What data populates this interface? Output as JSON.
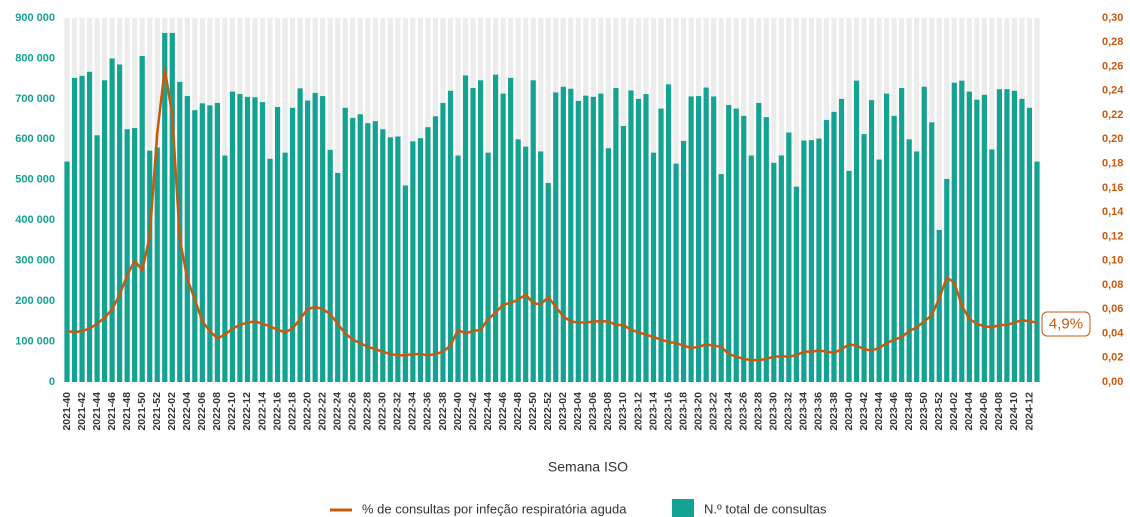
{
  "chart_data": {
    "type": "bar_line",
    "x_label": "Semana ISO",
    "end_label": "4,9%",
    "categories": [
      "2021-40",
      null,
      "2021-42",
      null,
      "2021-44",
      null,
      "2021-46",
      null,
      "2021-48",
      null,
      "2021-50",
      null,
      "2021-52",
      null,
      "2022-02",
      null,
      "2022-04",
      null,
      "2022-06",
      null,
      "2022-08",
      null,
      "2022-10",
      null,
      "2022-12",
      null,
      "2022-14",
      null,
      "2022-16",
      null,
      "2022-18",
      null,
      "2022-20",
      null,
      "2022-22",
      null,
      "2022-24",
      null,
      "2022-26",
      null,
      "2022-28",
      null,
      "2022-30",
      null,
      "2022-32",
      null,
      "2022-34",
      null,
      "2022-36",
      null,
      "2022-38",
      null,
      "2022-40",
      null,
      "2022-42",
      null,
      "2022-44",
      null,
      "2022-46",
      null,
      "2022-48",
      null,
      "2022-50",
      null,
      "2022-52",
      null,
      "2023-02",
      null,
      "2023-04",
      null,
      "2023-06",
      null,
      "2023-08",
      null,
      "2023-10",
      null,
      "2023-12",
      null,
      "2023-14",
      null,
      "2023-16",
      null,
      "2023-18",
      null,
      "2023-20",
      null,
      "2023-22",
      null,
      "2023-24",
      null,
      "2023-26",
      null,
      "2023-28",
      null,
      "2023-30",
      null,
      "2023-32",
      null,
      "2023-34",
      null,
      "2023-36",
      null,
      "2023-38",
      null,
      "2023-40",
      null,
      "2023-42",
      null,
      "2023-44",
      null,
      "2023-46",
      null,
      "2023-48",
      null,
      "2023-50",
      null,
      "2023-52",
      null,
      "2024-02",
      null,
      "2024-04",
      null,
      "2024-06",
      null,
      "2024-08",
      null,
      "2024-10",
      null,
      "2024-12",
      null
    ],
    "series": [
      {
        "name": "% de consultas por infeção respiratória aguda",
        "color": "#c55a11",
        "kind": "line",
        "axis": "y2",
        "values": [
          0.042,
          0.041,
          0.042,
          0.044,
          0.048,
          0.053,
          0.06,
          0.072,
          0.088,
          0.1,
          0.092,
          0.12,
          0.205,
          0.258,
          0.22,
          0.118,
          0.085,
          0.068,
          0.05,
          0.042,
          0.036,
          0.039,
          0.044,
          0.047,
          0.049,
          0.05,
          0.048,
          0.046,
          0.043,
          0.041,
          0.044,
          0.052,
          0.06,
          0.062,
          0.06,
          0.056,
          0.048,
          0.04,
          0.035,
          0.032,
          0.029,
          0.027,
          0.025,
          0.023,
          0.022,
          0.022,
          0.023,
          0.023,
          0.022,
          0.023,
          0.025,
          0.03,
          0.043,
          0.04,
          0.042,
          0.043,
          0.052,
          0.057,
          0.064,
          0.065,
          0.068,
          0.072,
          0.065,
          0.064,
          0.07,
          0.062,
          0.054,
          0.05,
          0.049,
          0.049,
          0.05,
          0.05,
          0.05,
          0.047,
          0.047,
          0.043,
          0.041,
          0.039,
          0.037,
          0.035,
          0.033,
          0.032,
          0.03,
          0.028,
          0.029,
          0.031,
          0.03,
          0.029,
          0.023,
          0.021,
          0.019,
          0.018,
          0.018,
          0.019,
          0.021,
          0.021,
          0.021,
          0.022,
          0.025,
          0.025,
          0.026,
          0.025,
          0.024,
          0.027,
          0.031,
          0.03,
          0.027,
          0.026,
          0.028,
          0.032,
          0.035,
          0.037,
          0.042,
          0.045,
          0.05,
          0.055,
          0.069,
          0.086,
          0.082,
          0.063,
          0.052,
          0.048,
          0.046,
          0.045,
          0.047,
          0.047,
          0.049,
          0.051,
          0.05,
          0.049
        ]
      },
      {
        "name": "N.º total de consultas",
        "color": "#14a393",
        "kind": "bar",
        "values": [
          545000,
          752000,
          757000,
          767000,
          610000,
          746000,
          800000,
          785000,
          625000,
          628000,
          806000,
          572000,
          580000,
          863000,
          863000,
          742000,
          707000,
          672000,
          689000,
          684000,
          690000,
          560000,
          718000,
          712000,
          705000,
          704000,
          692000,
          552000,
          680000,
          567000,
          678000,
          726000,
          696000,
          715000,
          707000,
          574000,
          517000,
          678000,
          653000,
          662000,
          640000,
          645000,
          625000,
          605000,
          607000,
          486000,
          595000,
          603000,
          630000,
          657000,
          690000,
          720000,
          560000,
          758000,
          727000,
          746000,
          567000,
          760000,
          713000,
          752000,
          600000,
          582000,
          746000,
          570000,
          492000,
          716000,
          730000,
          725000,
          695000,
          708000,
          705000,
          713000,
          578000,
          727000,
          633000,
          721000,
          700000,
          712000,
          567000,
          676000,
          736000,
          540000,
          596000,
          706000,
          707000,
          728000,
          706000,
          514000,
          685000,
          676000,
          658000,
          560000,
          690000,
          655000,
          542000,
          560000,
          617000,
          483000,
          597000,
          598000,
          602000,
          648000,
          668000,
          700000,
          522000,
          745000,
          613000,
          697000,
          550000,
          713000,
          658000,
          727000,
          600000,
          570000,
          730000,
          642000,
          376000,
          502000,
          740000,
          745000,
          718000,
          698000,
          710000,
          575000,
          724000,
          724000,
          720000,
          700000,
          678000,
          545000
        ]
      }
    ],
    "ylim": [
      0,
      900000
    ],
    "yticks": [
      0,
      {
        "value": 100000,
        "label": "100 000"
      },
      {
        "value": 200000,
        "label": "200 000"
      },
      {
        "value": 300000,
        "label": "300 000"
      },
      {
        "value": 400000,
        "label": "400 000"
      },
      {
        "value": 500000,
        "label": "500 000"
      },
      {
        "value": 600000,
        "label": "600 000"
      },
      {
        "value": 700000,
        "label": "700 000"
      },
      {
        "value": 800000,
        "label": "800 000"
      },
      {
        "value": 900000,
        "label": "900 000"
      }
    ],
    "y2lim": [
      0,
      0.3
    ],
    "y2ticks": [
      {
        "value": 0,
        "label": "0,00"
      },
      {
        "value": 0.02,
        "label": "0,02"
      },
      {
        "value": 0.04,
        "label": "0,04"
      },
      {
        "value": 0.06,
        "label": "0,06"
      },
      {
        "value": 0.08,
        "label": "0,08"
      },
      {
        "value": 0.1,
        "label": "0,10"
      },
      {
        "value": 0.12,
        "label": "0,12"
      },
      {
        "value": 0.14,
        "label": "0,14"
      },
      {
        "value": 0.16,
        "label": "0,16"
      },
      {
        "value": 0.18,
        "label": "0,18"
      },
      {
        "value": 0.2,
        "label": "0,20"
      },
      {
        "value": 0.22,
        "label": "0,22"
      },
      {
        "value": 0.24,
        "label": "0,24"
      },
      {
        "value": 0.26,
        "label": "0,26"
      },
      {
        "value": 0.28,
        "label": "0,28"
      },
      {
        "value": 0.3,
        "label": "0,30"
      }
    ]
  }
}
